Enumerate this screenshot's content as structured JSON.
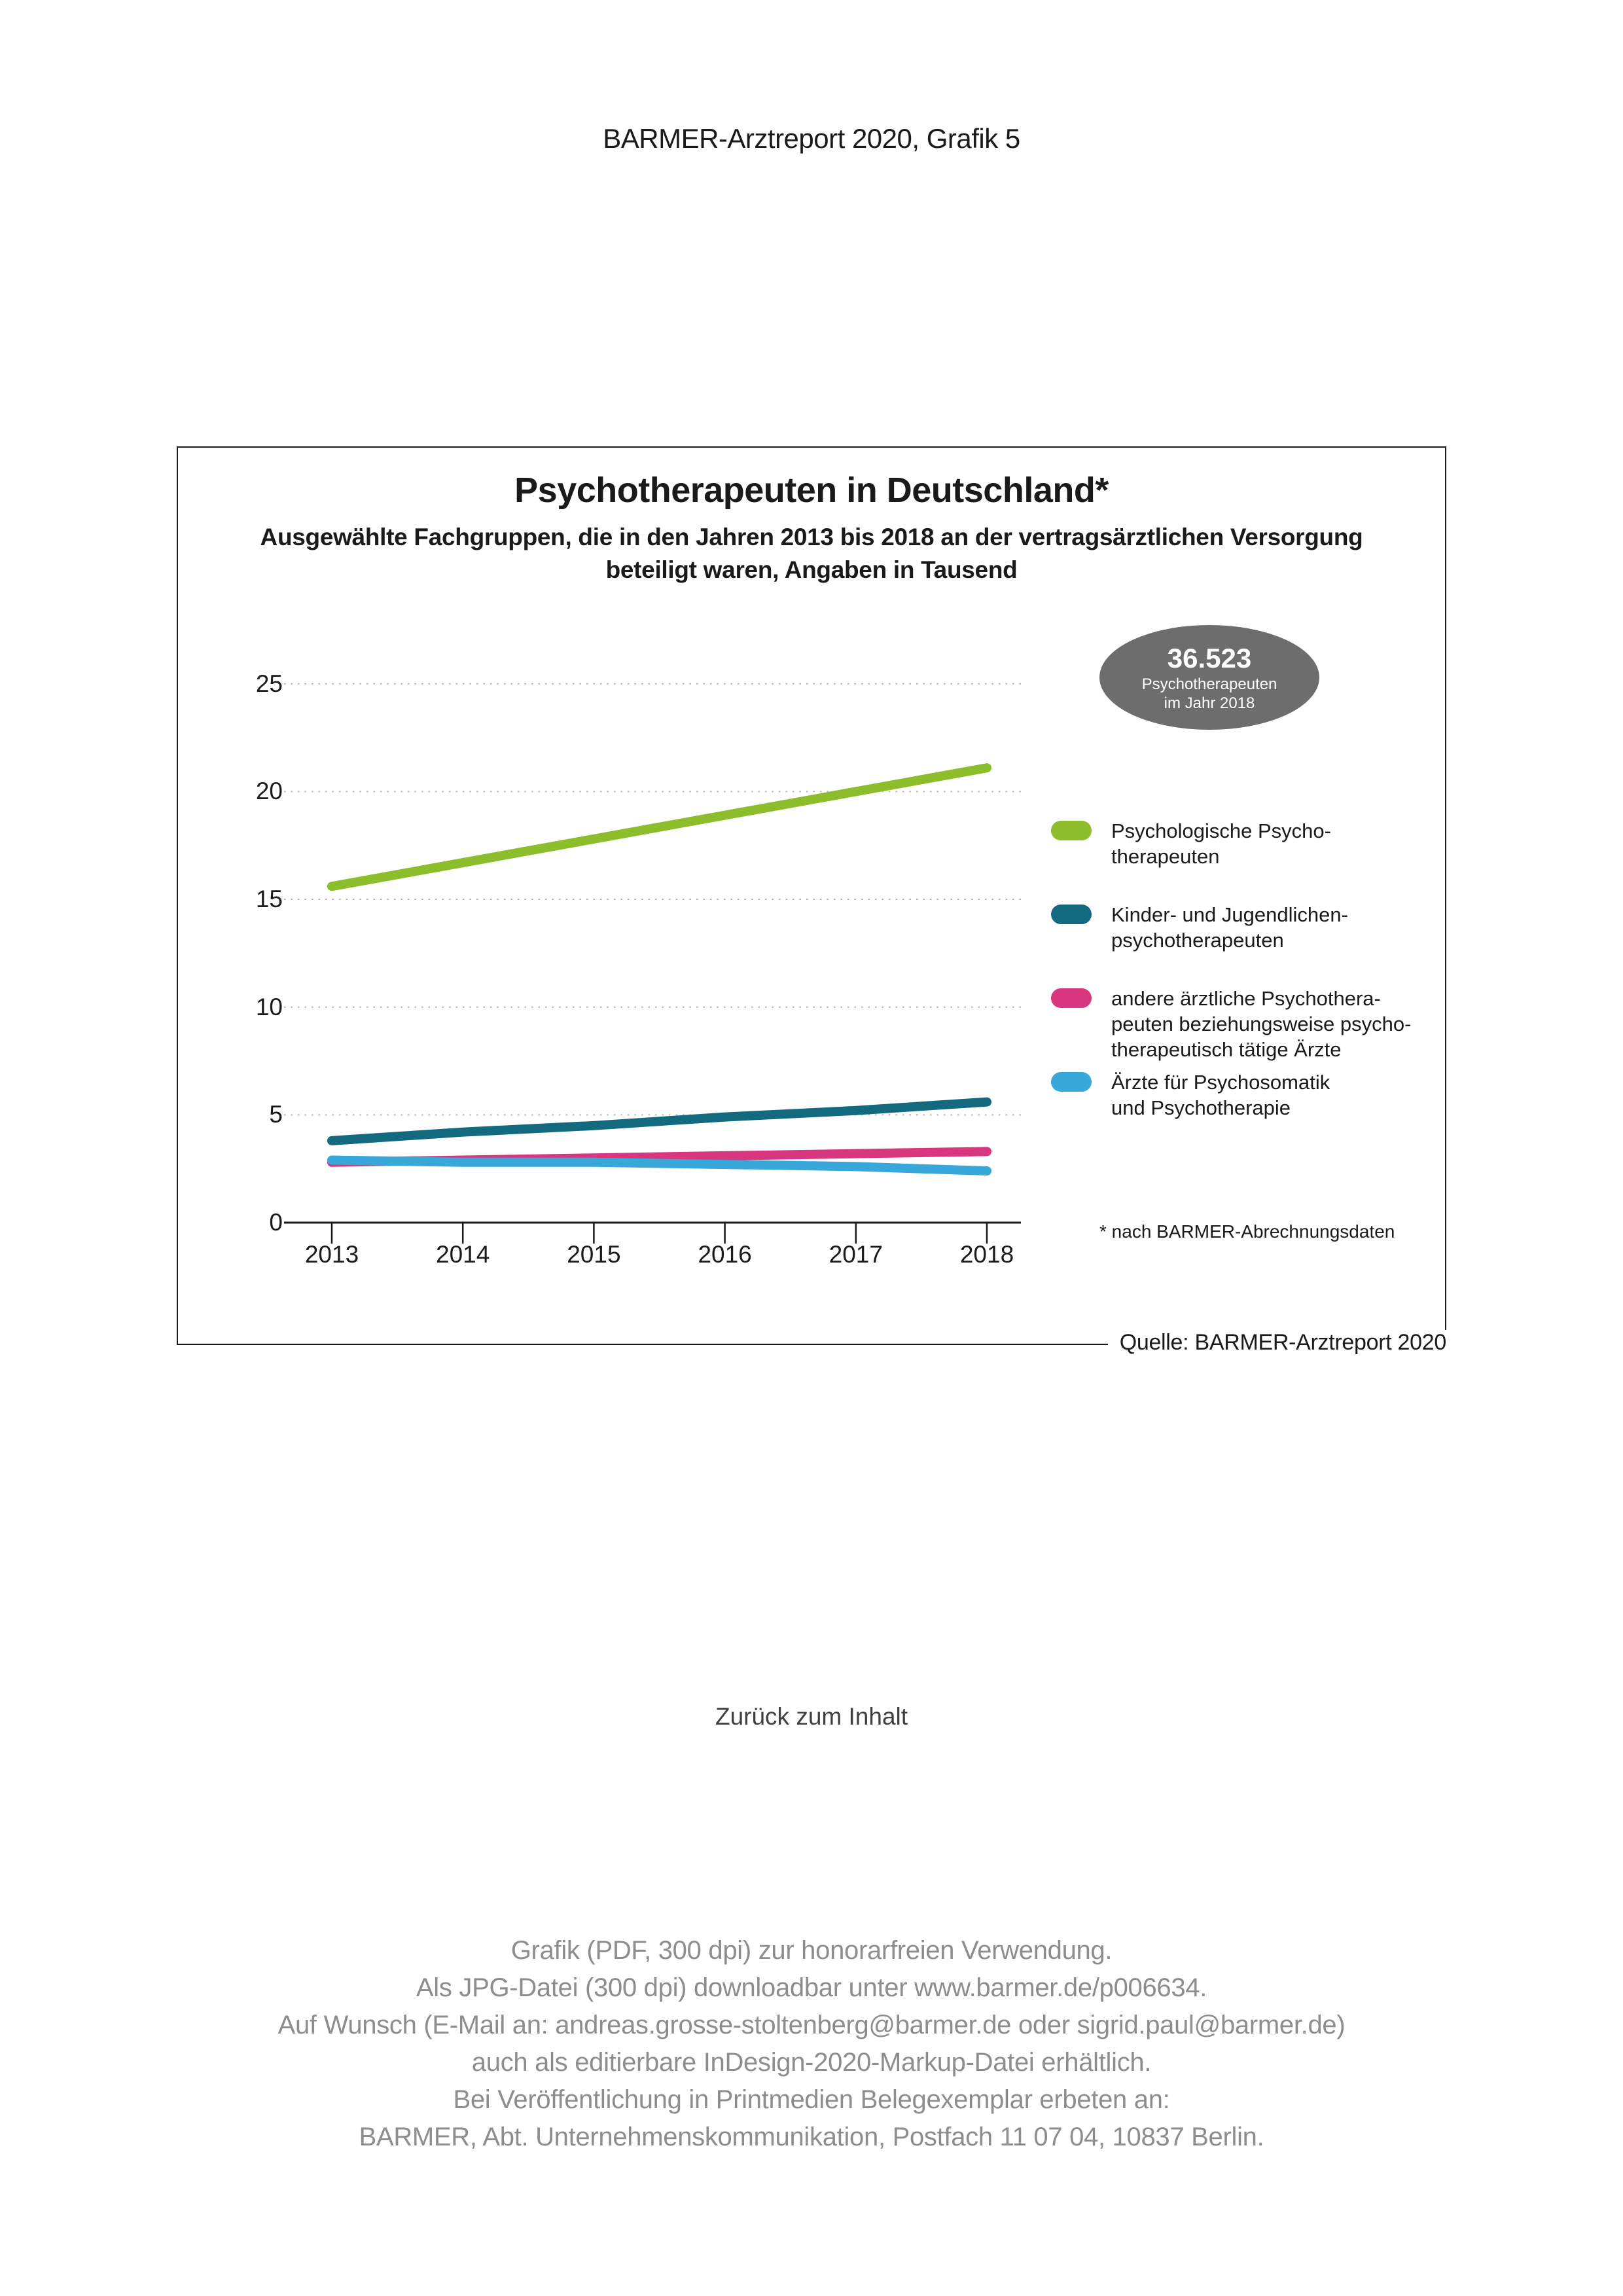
{
  "page": {
    "header": "BARMER-Arztreport 2020, Grafik 5",
    "back_link": "Zurück zum Inhalt",
    "source": "Quelle: BARMER-Arztreport 2020",
    "footer_lines": [
      "Grafik (PDF, 300 dpi) zur honorarfreien Verwendung.",
      "Als JPG-Datei (300 dpi) downloadbar unter www.barmer.de/p006634.",
      "Auf Wunsch (E-Mail an: andreas.grosse-stoltenberg@barmer.de oder sigrid.paul@barmer.de)",
      "auch als editierbare InDesign-2020-Markup-Datei erhältlich.",
      "Bei Veröffentlichung in Printmedien Belegexemplar erbeten an:",
      "BARMER, Abt. Unternehmenskommunikation, Postfach 11 07 04, 10837 Berlin."
    ]
  },
  "chart": {
    "title": "Psychotherapeuten in Deutschland*",
    "subtitle_line1": "Ausgewählte Fachgruppen, die in den Jahren 2013 bis 2018 an der vertragsärztlichen Versorgung",
    "subtitle_line2": "beteiligt waren, Angaben in Tausend",
    "badge": {
      "value": "36.523",
      "line2": "Psychotherapeuten",
      "line3": "im Jahr 2018",
      "color": "#6d6d6d"
    },
    "footnote": "* nach BARMER-Abrechnungsdaten",
    "legend": [
      {
        "color": "#8cbd2a",
        "lines": [
          "Psychologische Psycho-",
          "therapeuten"
        ]
      },
      {
        "color": "#136a7f",
        "lines": [
          "Kinder- und Jugendlichen-",
          "psychotherapeuten"
        ]
      },
      {
        "color": "#d8367f",
        "lines": [
          "andere ärztliche Psychothera-",
          "peuten beziehungsweise psycho-",
          "therapeutisch tätige Ärzte"
        ]
      },
      {
        "color": "#38a7d9",
        "lines": [
          "Ärzte für Psychosomatik",
          "und Psychotherapie"
        ]
      }
    ],
    "colors": {
      "axis": "#1a1a1a",
      "gridline": "#b3b3b3",
      "badge_gray": "#6d6d6d",
      "footer_gray": "#8d8d8d"
    }
  },
  "chart_data": {
    "type": "line",
    "title": "Psychotherapeuten in Deutschland*",
    "subtitle": "Ausgewählte Fachgruppen, die in den Jahren 2013 bis 2018 an der vertragsärztlichen Versorgung beteiligt waren, Angaben in Tausend",
    "x": [
      2013,
      2014,
      2015,
      2016,
      2017,
      2018
    ],
    "series": [
      {
        "name": "Psychologische Psychotherapeuten",
        "color": "#8cbd2a",
        "values": [
          15.6,
          16.7,
          17.8,
          18.9,
          20.0,
          21.1
        ]
      },
      {
        "name": "Kinder- und Jugendlichenpsychotherapeuten",
        "color": "#136a7f",
        "values": [
          3.8,
          4.2,
          4.5,
          4.9,
          5.2,
          5.6
        ]
      },
      {
        "name": "andere ärztliche Psychotherapeuten beziehungsweise psychotherapeutisch tätige Ärzte",
        "color": "#d8367f",
        "values": [
          2.8,
          2.9,
          3.0,
          3.1,
          3.2,
          3.3
        ]
      },
      {
        "name": "Ärzte für Psychosomatik und Psychotherapie",
        "color": "#38a7d9",
        "values": [
          2.9,
          2.8,
          2.8,
          2.7,
          2.6,
          2.4
        ]
      }
    ],
    "ylim": [
      0,
      25
    ],
    "yticks": [
      0,
      5,
      10,
      15,
      20,
      25
    ],
    "grid": "horizontal-dotted",
    "legend_position": "right",
    "annotation": "36.523 Psychotherapeuten im Jahr 2018"
  }
}
